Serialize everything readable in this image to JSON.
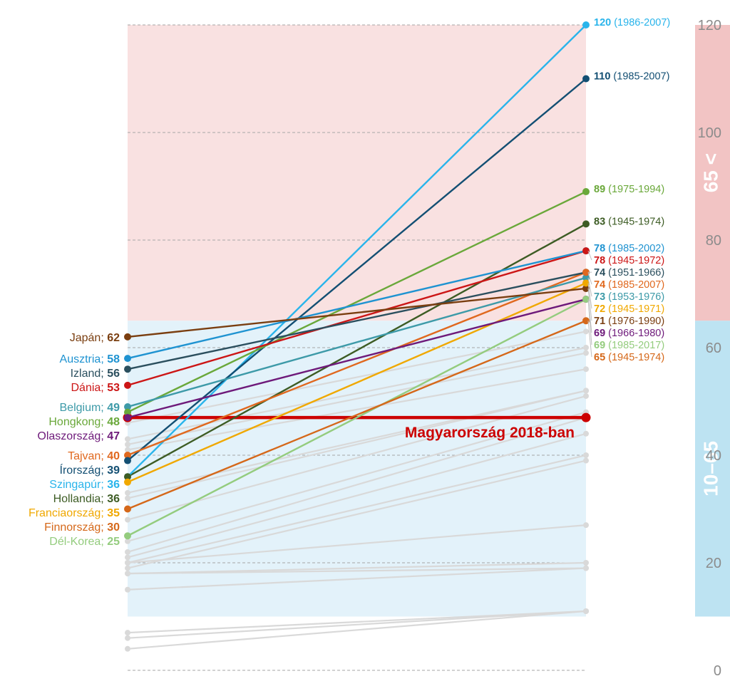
{
  "chart_data": {
    "type": "line",
    "title": "",
    "xlabel": "",
    "ylabel": "",
    "ylim": [
      0,
      120
    ],
    "yticks": [
      0,
      20,
      40,
      60,
      80,
      100,
      120
    ],
    "grid": true,
    "bands": [
      {
        "label": "65 <",
        "from": 65,
        "to": 120,
        "color": "#f2c4c4",
        "fill": "#f9e1e1"
      },
      {
        "label": "10–65",
        "from": 10,
        "to": 65,
        "color": "#bde3f2",
        "fill": "#e3f2fa"
      }
    ],
    "reference": {
      "label": "Magyarország 2018-ban",
      "value": 47,
      "color": "#cc0000"
    },
    "series": [
      {
        "name": "Japán",
        "start": 62,
        "end": 71,
        "period": "(1976-1990)",
        "color": "#7a3e10"
      },
      {
        "name": "Ausztria",
        "start": 58,
        "end": 78,
        "period": "(1985-2002)",
        "color": "#1f93d1"
      },
      {
        "name": "Izland",
        "start": 56,
        "end": 74,
        "period": "(1951-1966)",
        "color": "#2b4f5e"
      },
      {
        "name": "Dánia",
        "start": 53,
        "end": 78,
        "period": "(1945-1972)",
        "color": "#cc1616"
      },
      {
        "name": "Belgium",
        "start": 49,
        "end": 73,
        "period": "(1953-1976)",
        "color": "#3d9aa8"
      },
      {
        "name": "Hongkong",
        "start": 48,
        "end": 89,
        "period": "(1975-1994)",
        "color": "#6aa83a"
      },
      {
        "name": "Olaszország",
        "start": 47,
        "end": 69,
        "period": "(1966-1980)",
        "color": "#6e1a7a"
      },
      {
        "name": "Tajvan",
        "start": 40,
        "end": 74,
        "period": "(1985-2007)",
        "color": "#e0681e"
      },
      {
        "name": "Írország",
        "start": 39,
        "end": 110,
        "period": "(1985-2007)",
        "color": "#134f73"
      },
      {
        "name": "Szingapúr",
        "start": 36,
        "end": 120,
        "period": "(1986-2007)",
        "color": "#29b4eb"
      },
      {
        "name": "Hollandia",
        "start": 36,
        "end": 83,
        "period": "(1945-1974)",
        "color": "#3d5c24"
      },
      {
        "name": "Franciaország",
        "start": 35,
        "end": 72,
        "period": "(1945-1971)",
        "color": "#f0a800"
      },
      {
        "name": "Finnország",
        "start": 30,
        "end": 65,
        "period": "(1945-1974)",
        "color": "#d5681a"
      },
      {
        "name": "Dél-Korea",
        "start": 25,
        "end": 69,
        "period": "(1985-2017)",
        "color": "#94cc7e"
      }
    ],
    "other_series_color": "#d9d9d9",
    "other_series": [
      [
        46,
        63
      ],
      [
        43,
        60
      ],
      [
        42,
        59
      ],
      [
        41,
        56
      ],
      [
        33,
        52
      ],
      [
        32,
        52
      ],
      [
        28,
        51
      ],
      [
        24,
        48
      ],
      [
        22,
        47
      ],
      [
        21,
        44
      ],
      [
        20,
        40
      ],
      [
        20,
        27
      ],
      [
        19,
        39
      ],
      [
        18,
        20
      ],
      [
        18,
        19
      ],
      [
        15,
        19
      ],
      [
        7,
        11
      ],
      [
        6,
        11
      ],
      [
        4,
        11
      ]
    ]
  }
}
